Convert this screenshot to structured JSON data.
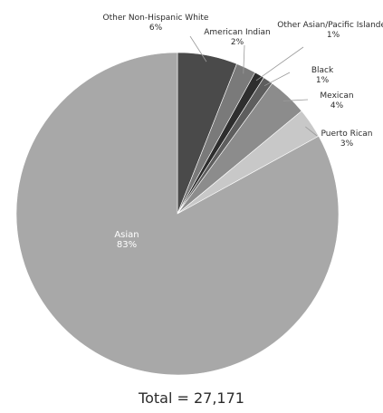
{
  "chart_data": {
    "type": "pie",
    "title": "",
    "total_label": "Total = 27,171",
    "slices": [
      {
        "label": "Other Non-Hispanic White",
        "value": 6,
        "pct_label": "6%",
        "color": "#4a4a4a"
      },
      {
        "label": "American Indian",
        "value": 2,
        "pct_label": "2%",
        "color": "#7a7a7a"
      },
      {
        "label": "Other Asian/Pacific Islander",
        "value": 1,
        "pct_label": "1%",
        "color": "#2e2e2e"
      },
      {
        "label": "Black",
        "value": 1,
        "pct_label": "1%",
        "color": "#5e5e5e"
      },
      {
        "label": "Mexican",
        "value": 4,
        "pct_label": "4%",
        "color": "#8c8c8c"
      },
      {
        "label": "Puerto Rican",
        "value": 3,
        "pct_label": "3%",
        "color": "#c8c8c8"
      },
      {
        "label": "Asian",
        "value": 83,
        "pct_label": "83%",
        "color": "#a8a8a8"
      }
    ]
  }
}
